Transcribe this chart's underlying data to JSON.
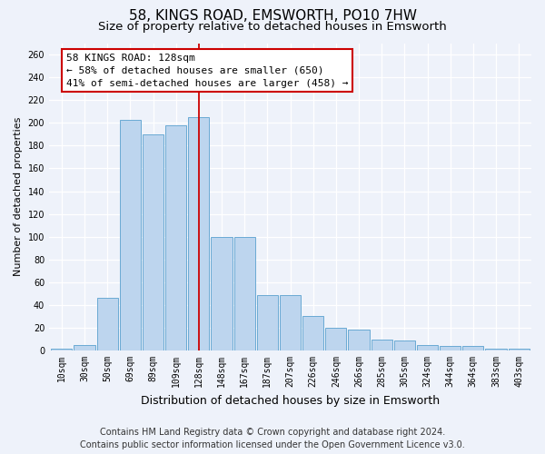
{
  "title": "58, KINGS ROAD, EMSWORTH, PO10 7HW",
  "subtitle": "Size of property relative to detached houses in Emsworth",
  "xlabel": "Distribution of detached houses by size in Emsworth",
  "ylabel": "Number of detached properties",
  "categories": [
    "10sqm",
    "30sqm",
    "50sqm",
    "69sqm",
    "89sqm",
    "109sqm",
    "128sqm",
    "148sqm",
    "167sqm",
    "187sqm",
    "207sqm",
    "226sqm",
    "246sqm",
    "266sqm",
    "285sqm",
    "305sqm",
    "324sqm",
    "344sqm",
    "364sqm",
    "383sqm",
    "403sqm"
  ],
  "values": [
    2,
    5,
    46,
    203,
    190,
    198,
    205,
    100,
    100,
    49,
    49,
    30,
    20,
    18,
    10,
    9,
    5,
    4,
    4,
    2,
    2
  ],
  "highlight_index": 6,
  "highlight_color": "#cc0000",
  "bar_color": "#bdd5ee",
  "bar_edge_color": "#6aaad4",
  "ylim": [
    0,
    270
  ],
  "yticks": [
    0,
    20,
    40,
    60,
    80,
    100,
    120,
    140,
    160,
    180,
    200,
    220,
    240,
    260
  ],
  "annotation_title": "58 KINGS ROAD: 128sqm",
  "annotation_line1": "← 58% of detached houses are smaller (650)",
  "annotation_line2": "41% of semi-detached houses are larger (458) →",
  "footer_line1": "Contains HM Land Registry data © Crown copyright and database right 2024.",
  "footer_line2": "Contains public sector information licensed under the Open Government Licence v3.0.",
  "background_color": "#eef2fa",
  "plot_bg_color": "#eef2fa",
  "title_fontsize": 11,
  "subtitle_fontsize": 9.5,
  "ylabel_fontsize": 8,
  "xlabel_fontsize": 9,
  "tick_fontsize": 7,
  "footer_fontsize": 7,
  "annotation_fontsize": 8
}
